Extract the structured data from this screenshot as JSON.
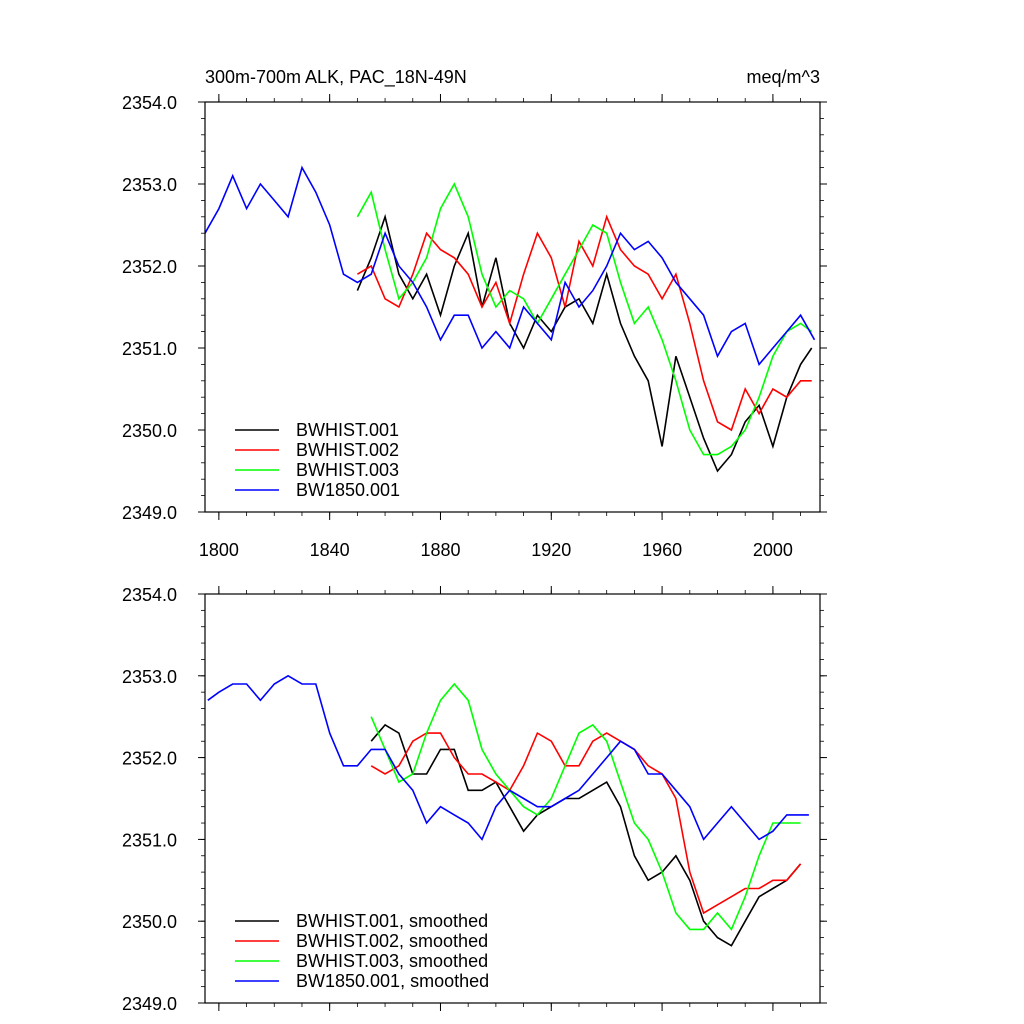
{
  "chart_data": [
    {
      "type": "line",
      "title": "300m-700m ALK, PAC_18N-49N",
      "units": "meq/m^3",
      "xlim": [
        1795,
        2017
      ],
      "ylim": [
        2349.0,
        2354.0
      ],
      "x_ticks": [
        1800,
        1840,
        1880,
        1920,
        1960,
        2000
      ],
      "x_tick_labels": [
        "1800",
        "1840",
        "1880",
        "1920",
        "1960",
        "2000"
      ],
      "y_ticks": [
        2349.0,
        2350.0,
        2351.0,
        2352.0,
        2353.0,
        2354.0
      ],
      "y_tick_labels": [
        "2349.0",
        "2350.0",
        "2351.0",
        "2352.0",
        "2353.0",
        "2354.0"
      ],
      "legend_position": "bottom-left",
      "series": [
        {
          "name": "BWHIST.001",
          "color": "#000000",
          "x": [
            1850,
            1855,
            1860,
            1865,
            1870,
            1875,
            1880,
            1885,
            1890,
            1895,
            1900,
            1905,
            1910,
            1915,
            1920,
            1925,
            1930,
            1935,
            1940,
            1945,
            1950,
            1955,
            1960,
            1965,
            1970,
            1975,
            1980,
            1985,
            1990,
            1995,
            2000,
            2005,
            2010,
            2014
          ],
          "values": [
            2351.7,
            2352.1,
            2352.6,
            2351.9,
            2351.6,
            2351.9,
            2351.4,
            2352.0,
            2352.4,
            2351.5,
            2352.1,
            2351.3,
            2351.0,
            2351.4,
            2351.2,
            2351.5,
            2351.6,
            2351.3,
            2351.9,
            2351.3,
            2350.9,
            2350.6,
            2349.8,
            2350.9,
            2350.4,
            2349.9,
            2349.5,
            2349.7,
            2350.1,
            2350.3,
            2349.8,
            2350.4,
            2350.8,
            2351.0
          ]
        },
        {
          "name": "BWHIST.002",
          "color": "#ff0000",
          "x": [
            1850,
            1855,
            1860,
            1865,
            1870,
            1875,
            1880,
            1885,
            1890,
            1895,
            1900,
            1905,
            1910,
            1915,
            1920,
            1925,
            1930,
            1935,
            1940,
            1945,
            1950,
            1955,
            1960,
            1965,
            1970,
            1975,
            1980,
            1985,
            1990,
            1995,
            2000,
            2005,
            2010,
            2014
          ],
          "values": [
            2351.9,
            2352.0,
            2351.6,
            2351.5,
            2351.9,
            2352.4,
            2352.2,
            2352.1,
            2351.9,
            2351.5,
            2351.8,
            2351.3,
            2351.9,
            2352.4,
            2352.1,
            2351.5,
            2352.3,
            2352.0,
            2352.6,
            2352.2,
            2352.0,
            2351.9,
            2351.6,
            2351.9,
            2351.3,
            2350.6,
            2350.1,
            2350.0,
            2350.5,
            2350.2,
            2350.5,
            2350.4,
            2350.6,
            2350.6
          ]
        },
        {
          "name": "BWHIST.003",
          "color": "#00ff00",
          "x": [
            1850,
            1855,
            1860,
            1865,
            1870,
            1875,
            1880,
            1885,
            1890,
            1895,
            1900,
            1905,
            1910,
            1915,
            1920,
            1925,
            1930,
            1935,
            1940,
            1945,
            1950,
            1955,
            1960,
            1965,
            1970,
            1975,
            1980,
            1985,
            1990,
            1995,
            2000,
            2005,
            2010,
            2014
          ],
          "values": [
            2352.6,
            2352.9,
            2352.2,
            2351.6,
            2351.8,
            2352.1,
            2352.7,
            2353.0,
            2352.6,
            2351.9,
            2351.5,
            2351.7,
            2351.6,
            2351.3,
            2351.6,
            2351.9,
            2352.2,
            2352.5,
            2352.4,
            2351.8,
            2351.3,
            2351.5,
            2351.1,
            2350.6,
            2350.0,
            2349.7,
            2349.7,
            2349.8,
            2350.0,
            2350.4,
            2350.9,
            2351.2,
            2351.3,
            2351.2
          ]
        },
        {
          "name": "BW1850.001",
          "color": "#0000ff",
          "x": [
            1795,
            1800,
            1805,
            1810,
            1815,
            1820,
            1825,
            1830,
            1835,
            1840,
            1845,
            1850,
            1855,
            1860,
            1865,
            1870,
            1875,
            1880,
            1885,
            1890,
            1895,
            1900,
            1905,
            1910,
            1915,
            1920,
            1925,
            1930,
            1935,
            1940,
            1945,
            1950,
            1955,
            1960,
            1965,
            1970,
            1975,
            1980,
            1985,
            1990,
            1995,
            2000,
            2005,
            2010,
            2015
          ],
          "values": [
            2352.4,
            2352.7,
            2353.1,
            2352.7,
            2353.0,
            2352.8,
            2352.6,
            2353.2,
            2352.9,
            2352.5,
            2351.9,
            2351.8,
            2351.9,
            2352.4,
            2352.0,
            2351.8,
            2351.5,
            2351.1,
            2351.4,
            2351.4,
            2351.0,
            2351.2,
            2351.0,
            2351.5,
            2351.3,
            2351.1,
            2351.8,
            2351.5,
            2351.7,
            2352.0,
            2352.4,
            2352.2,
            2352.3,
            2352.1,
            2351.8,
            2351.6,
            2351.4,
            2350.9,
            2351.2,
            2351.3,
            2350.8,
            2351.0,
            2351.2,
            2351.4,
            2351.1
          ]
        }
      ]
    },
    {
      "type": "line",
      "xlim": [
        1795,
        2017
      ],
      "ylim": [
        2349.0,
        2354.0
      ],
      "x_ticks": [
        1800,
        1840,
        1880,
        1920,
        1960,
        2000
      ],
      "y_ticks": [
        2349.0,
        2350.0,
        2351.0,
        2352.0,
        2353.0,
        2354.0
      ],
      "y_tick_labels": [
        "2349.0",
        "2350.0",
        "2351.0",
        "2352.0",
        "2353.0",
        "2354.0"
      ],
      "legend_position": "bottom-left",
      "series": [
        {
          "name": "BWHIST.001, smoothed",
          "color": "#000000",
          "x": [
            1855,
            1860,
            1865,
            1870,
            1875,
            1880,
            1885,
            1890,
            1895,
            1900,
            1905,
            1910,
            1915,
            1920,
            1925,
            1930,
            1935,
            1940,
            1945,
            1950,
            1955,
            1960,
            1965,
            1970,
            1975,
            1980,
            1985,
            1990,
            1995,
            2000,
            2005,
            2010
          ],
          "values": [
            2352.2,
            2352.4,
            2352.3,
            2351.8,
            2351.8,
            2352.1,
            2352.1,
            2351.6,
            2351.6,
            2351.7,
            2351.4,
            2351.1,
            2351.3,
            2351.4,
            2351.5,
            2351.5,
            2351.6,
            2351.7,
            2351.4,
            2350.8,
            2350.5,
            2350.6,
            2350.8,
            2350.5,
            2350.0,
            2349.8,
            2349.7,
            2350.0,
            2350.3,
            2350.4,
            2350.5,
            2350.7
          ]
        },
        {
          "name": "BWHIST.002, smoothed",
          "color": "#ff0000",
          "x": [
            1855,
            1860,
            1865,
            1870,
            1875,
            1880,
            1885,
            1890,
            1895,
            1900,
            1905,
            1910,
            1915,
            1920,
            1925,
            1930,
            1935,
            1940,
            1945,
            1950,
            1955,
            1960,
            1965,
            1970,
            1975,
            1980,
            1985,
            1990,
            1995,
            2000,
            2005,
            2010
          ],
          "values": [
            2351.9,
            2351.8,
            2351.9,
            2352.2,
            2352.3,
            2352.3,
            2352.0,
            2351.8,
            2351.8,
            2351.7,
            2351.6,
            2351.9,
            2352.3,
            2352.2,
            2351.9,
            2351.9,
            2352.2,
            2352.3,
            2352.2,
            2352.1,
            2351.9,
            2351.8,
            2351.5,
            2350.6,
            2350.1,
            2350.2,
            2350.3,
            2350.4,
            2350.4,
            2350.5,
            2350.5,
            2350.7
          ]
        },
        {
          "name": "BWHIST.003, smoothed",
          "color": "#00ff00",
          "x": [
            1855,
            1860,
            1865,
            1870,
            1875,
            1880,
            1885,
            1890,
            1895,
            1900,
            1905,
            1910,
            1915,
            1920,
            1925,
            1930,
            1935,
            1940,
            1945,
            1950,
            1955,
            1960,
            1965,
            1970,
            1975,
            1980,
            1985,
            1990,
            1995,
            2000,
            2005,
            2010
          ],
          "values": [
            2352.5,
            2352.1,
            2351.7,
            2351.8,
            2352.3,
            2352.7,
            2352.9,
            2352.7,
            2352.1,
            2351.8,
            2351.6,
            2351.4,
            2351.3,
            2351.5,
            2351.9,
            2352.3,
            2352.4,
            2352.2,
            2351.7,
            2351.2,
            2351.0,
            2350.6,
            2350.1,
            2349.9,
            2349.9,
            2350.1,
            2349.9,
            2350.3,
            2350.8,
            2351.2,
            2351.2,
            2351.2
          ]
        },
        {
          "name": "BW1850.001, smoothed",
          "color": "#0000ff",
          "x": [
            1796,
            1800,
            1805,
            1810,
            1815,
            1820,
            1825,
            1830,
            1835,
            1840,
            1845,
            1850,
            1855,
            1860,
            1865,
            1870,
            1875,
            1880,
            1885,
            1890,
            1895,
            1900,
            1905,
            1910,
            1915,
            1920,
            1925,
            1930,
            1935,
            1940,
            1945,
            1950,
            1955,
            1960,
            1965,
            1970,
            1975,
            1980,
            1985,
            1990,
            1995,
            2000,
            2005,
            2010,
            2013
          ],
          "values": [
            2352.7,
            2352.8,
            2352.9,
            2352.9,
            2352.7,
            2352.9,
            2353.0,
            2352.9,
            2352.9,
            2352.3,
            2351.9,
            2351.9,
            2352.1,
            2352.1,
            2351.8,
            2351.6,
            2351.2,
            2351.4,
            2351.3,
            2351.2,
            2351.0,
            2351.4,
            2351.6,
            2351.5,
            2351.4,
            2351.4,
            2351.5,
            2351.6,
            2351.8,
            2352.0,
            2352.2,
            2352.1,
            2351.8,
            2351.8,
            2351.6,
            2351.4,
            2351.0,
            2351.2,
            2351.4,
            2351.2,
            2351.0,
            2351.1,
            2351.3,
            2351.3,
            2351.3
          ]
        }
      ]
    }
  ]
}
